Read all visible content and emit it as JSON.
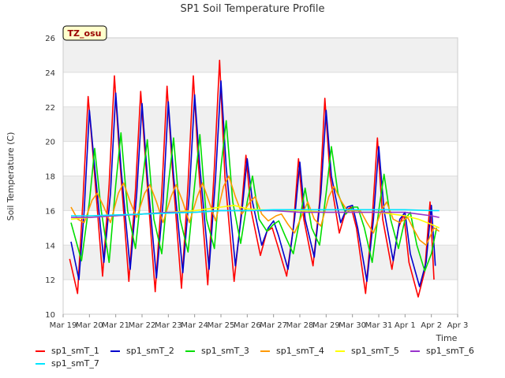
{
  "chart_data": {
    "type": "line",
    "title": "SP1 Soil Temperature Profile",
    "xlabel": "Time",
    "ylabel": "Soil Temperature (C)",
    "annotation": "TZ_osu",
    "xlim": [
      0,
      15
    ],
    "ylim": [
      10,
      26
    ],
    "y_ticks": [
      10,
      12,
      14,
      16,
      18,
      20,
      22,
      24,
      26
    ],
    "x_tick_labels": [
      "Mar 19",
      "Mar 20",
      "Mar 21",
      "Mar 22",
      "Mar 23",
      "Mar 24",
      "Mar 25",
      "Mar 26",
      "Mar 27",
      "Mar 28",
      "Mar 29",
      "Mar 30",
      "Mar 31",
      "Apr 1",
      "Apr 2",
      "Apr 3"
    ],
    "grid": true,
    "legend_position": "bottom",
    "series": [
      {
        "name": "sp1_smT_1",
        "color": "#ff0000",
        "x": [
          0.25,
          0.55,
          0.75,
          0.95,
          1.15,
          1.5,
          1.75,
          1.95,
          2.15,
          2.5,
          2.75,
          2.95,
          3.15,
          3.5,
          3.75,
          3.95,
          4.15,
          4.5,
          4.75,
          4.95,
          5.15,
          5.5,
          5.75,
          5.95,
          6.15,
          6.5,
          6.75,
          6.95,
          7.15,
          7.5,
          7.75,
          7.95,
          8.15,
          8.5,
          8.75,
          8.95,
          9.15,
          9.5,
          9.75,
          9.95,
          10.15,
          10.5,
          10.75,
          10.95,
          11.15,
          11.5,
          11.75,
          11.95,
          12.15,
          12.5,
          12.75,
          12.95,
          13.15,
          13.5,
          13.75,
          13.95,
          14.1
        ],
        "y": [
          13.2,
          11.2,
          16.5,
          22.6,
          19.0,
          12.2,
          17.5,
          23.8,
          19.0,
          11.9,
          17.2,
          22.9,
          18.5,
          11.3,
          17.0,
          23.2,
          18.5,
          11.5,
          17.5,
          23.8,
          18.5,
          11.7,
          18.5,
          24.7,
          18.0,
          11.9,
          15.5,
          19.2,
          16.0,
          13.4,
          14.8,
          15.0,
          14.0,
          12.2,
          15.0,
          19.0,
          15.5,
          12.8,
          16.5,
          22.5,
          18.0,
          14.7,
          16.0,
          16.2,
          15.0,
          11.2,
          15.5,
          20.2,
          15.5,
          12.6,
          15.0,
          15.8,
          13.0,
          11.0,
          12.5,
          16.5,
          12.0
        ]
      },
      {
        "name": "sp1_smT_2",
        "color": "#0000cc",
        "x": [
          0.3,
          0.6,
          0.8,
          1.0,
          1.2,
          1.55,
          1.8,
          2.0,
          2.2,
          2.55,
          2.8,
          3.0,
          3.2,
          3.55,
          3.8,
          4.0,
          4.2,
          4.55,
          4.8,
          5.0,
          5.2,
          5.55,
          5.8,
          6.0,
          6.2,
          6.55,
          6.8,
          7.0,
          7.2,
          7.55,
          7.8,
          8.0,
          8.2,
          8.55,
          8.8,
          9.0,
          9.2,
          9.55,
          9.8,
          10.0,
          10.2,
          10.55,
          10.8,
          11.0,
          11.2,
          11.55,
          11.8,
          12.0,
          12.2,
          12.55,
          12.8,
          13.0,
          13.2,
          13.55,
          13.8,
          14.0,
          14.15
        ],
        "y": [
          14.2,
          12.0,
          16.0,
          21.8,
          18.5,
          13.0,
          17.0,
          22.8,
          18.5,
          12.6,
          17.0,
          22.2,
          18.0,
          12.1,
          16.5,
          22.3,
          18.0,
          12.4,
          17.0,
          22.7,
          18.5,
          12.6,
          18.0,
          23.5,
          18.5,
          12.8,
          16.0,
          19.0,
          16.5,
          14.0,
          15.0,
          15.4,
          14.5,
          12.6,
          15.5,
          18.8,
          15.5,
          13.3,
          17.0,
          21.8,
          18.0,
          15.3,
          16.2,
          16.3,
          15.0,
          11.9,
          15.5,
          19.7,
          16.0,
          13.1,
          15.5,
          15.9,
          13.5,
          11.6,
          13.0,
          16.3,
          12.8
        ]
      },
      {
        "name": "sp1_smT_3",
        "color": "#00dd00",
        "x": [
          0.3,
          0.7,
          1.0,
          1.2,
          1.45,
          1.75,
          2.0,
          2.2,
          2.45,
          2.75,
          3.0,
          3.2,
          3.45,
          3.75,
          4.0,
          4.2,
          4.45,
          4.75,
          5.0,
          5.2,
          5.45,
          5.75,
          6.0,
          6.2,
          6.45,
          6.75,
          7.0,
          7.2,
          7.45,
          7.75,
          8.0,
          8.2,
          8.45,
          8.75,
          9.0,
          9.2,
          9.45,
          9.75,
          10.0,
          10.2,
          10.45,
          10.75,
          11.0,
          11.2,
          11.45,
          11.75,
          12.0,
          12.2,
          12.45,
          12.75,
          13.0,
          13.2,
          13.45,
          13.75,
          14.0,
          14.2
        ],
        "y": [
          15.3,
          13.1,
          16.5,
          19.6,
          16.0,
          13.0,
          17.5,
          20.5,
          16.0,
          13.8,
          17.5,
          20.1,
          15.5,
          13.5,
          17.5,
          20.2,
          15.5,
          13.6,
          17.5,
          20.4,
          15.5,
          13.8,
          18.5,
          21.2,
          16.5,
          14.1,
          16.5,
          18.0,
          15.5,
          14.8,
          15.2,
          15.4,
          14.5,
          13.5,
          15.5,
          17.3,
          15.0,
          14.0,
          17.0,
          19.7,
          17.0,
          15.8,
          16.2,
          16.2,
          15.0,
          13.0,
          16.0,
          18.1,
          15.5,
          13.8,
          15.5,
          15.9,
          14.0,
          12.5,
          13.5,
          15.0
        ]
      },
      {
        "name": "sp1_smT_4",
        "color": "#ff9900",
        "x": [
          0.3,
          0.55,
          0.8,
          1.1,
          1.3,
          1.55,
          1.8,
          2.1,
          2.3,
          2.55,
          2.8,
          3.1,
          3.3,
          3.55,
          3.8,
          4.1,
          4.3,
          4.55,
          4.8,
          5.1,
          5.3,
          5.55,
          5.8,
          6.1,
          6.3,
          6.55,
          6.8,
          7.1,
          7.3,
          7.55,
          7.8,
          8.1,
          8.3,
          8.55,
          8.8,
          9.1,
          9.3,
          9.55,
          9.8,
          10.1,
          10.3,
          10.55,
          10.8,
          11.1,
          11.3,
          11.55,
          11.8,
          12.1,
          12.3,
          12.55,
          12.8,
          13.1,
          13.3,
          13.55,
          13.8,
          14.1,
          14.3
        ],
        "y": [
          16.2,
          15.5,
          15.3,
          16.6,
          17.0,
          16.2,
          15.3,
          17.0,
          17.6,
          16.5,
          15.6,
          17.0,
          17.5,
          16.5,
          15.3,
          16.8,
          17.5,
          16.5,
          15.3,
          16.8,
          17.6,
          16.5,
          15.4,
          17.4,
          18.0,
          16.8,
          15.8,
          16.5,
          16.8,
          15.8,
          15.4,
          15.7,
          15.8,
          15.2,
          14.7,
          15.8,
          16.5,
          15.5,
          15.1,
          16.8,
          17.4,
          16.6,
          16.0,
          16.0,
          16.0,
          15.3,
          14.7,
          16.0,
          16.5,
          15.5,
          15.3,
          15.6,
          15.0,
          14.3,
          14.0,
          15.0,
          14.8
        ]
      },
      {
        "name": "sp1_smT_5",
        "color": "#ffff00",
        "x": [
          0.3,
          1.0,
          2.0,
          3.0,
          4.0,
          5.0,
          6.0,
          6.5,
          7.0,
          8.0,
          9.0,
          10.0,
          11.0,
          12.0,
          12.5,
          13.0,
          13.5,
          14.0,
          14.3
        ],
        "y": [
          15.5,
          15.6,
          15.7,
          15.8,
          15.9,
          16.0,
          16.2,
          16.3,
          16.1,
          16.0,
          16.0,
          15.9,
          15.9,
          15.9,
          15.8,
          15.7,
          15.5,
          15.2,
          15.0
        ]
      },
      {
        "name": "sp1_smT_6",
        "color": "#9933cc",
        "x": [
          0.3,
          1.0,
          2.0,
          3.0,
          4.0,
          5.0,
          6.0,
          7.0,
          8.0,
          9.0,
          10.0,
          11.0,
          12.0,
          13.0,
          13.5,
          14.0,
          14.3
        ],
        "y": [
          15.6,
          15.6,
          15.7,
          15.8,
          15.9,
          15.9,
          16.0,
          16.0,
          16.0,
          15.9,
          15.9,
          15.9,
          15.9,
          15.9,
          15.8,
          15.7,
          15.6
        ]
      },
      {
        "name": "sp1_smT_7",
        "color": "#00e5ff",
        "x": [
          0.3,
          1.0,
          2.0,
          3.0,
          4.0,
          5.0,
          6.0,
          7.0,
          8.0,
          9.0,
          10.0,
          11.0,
          12.0,
          13.0,
          14.0,
          14.3
        ],
        "y": [
          15.7,
          15.7,
          15.75,
          15.8,
          15.85,
          15.9,
          16.0,
          16.0,
          16.05,
          16.05,
          16.05,
          16.05,
          16.05,
          16.05,
          16.0,
          16.0
        ]
      }
    ]
  }
}
